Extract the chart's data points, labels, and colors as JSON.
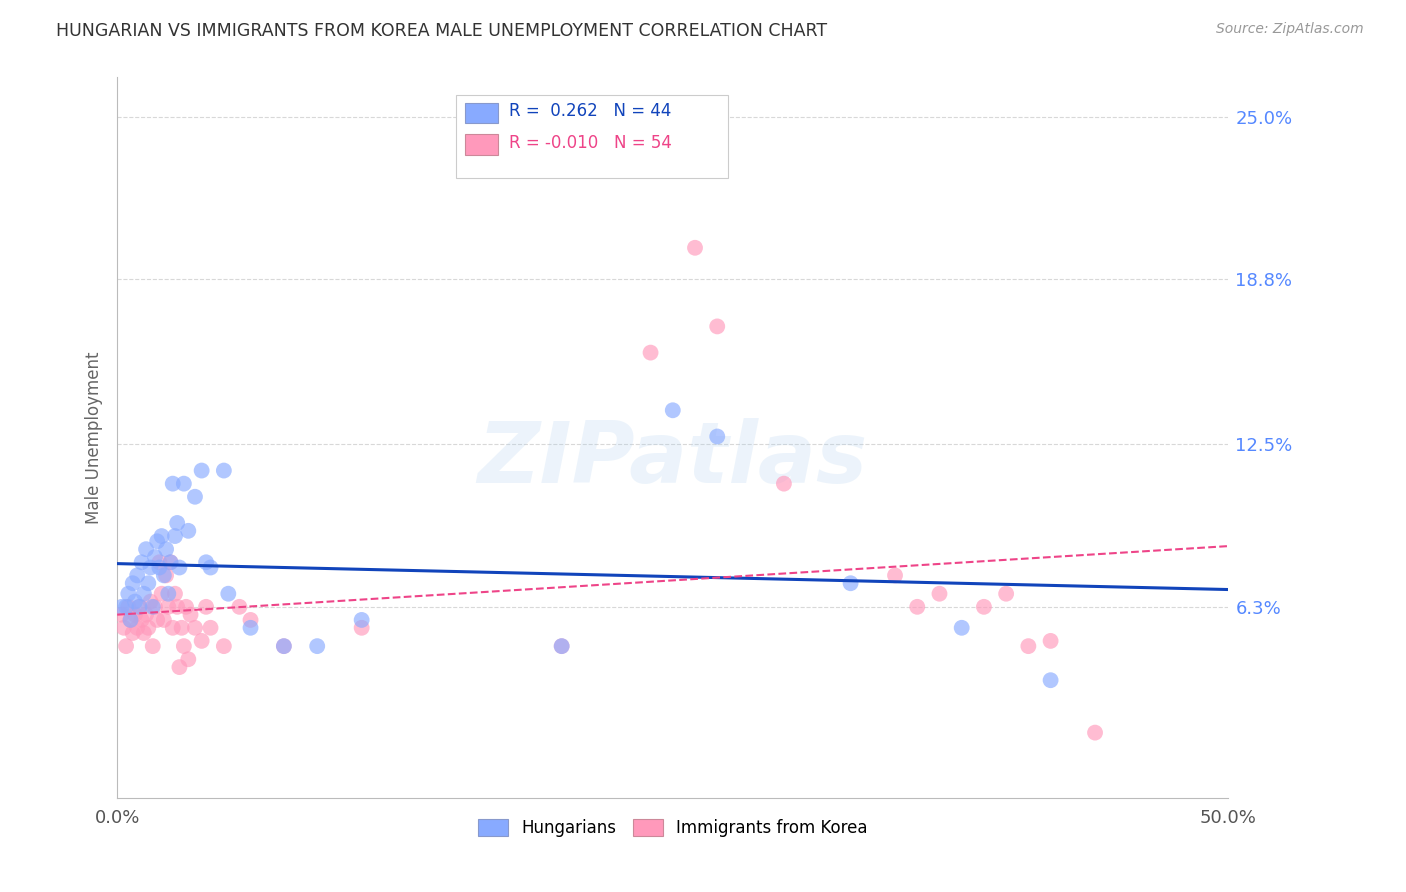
{
  "title": "HUNGARIAN VS IMMIGRANTS FROM KOREA MALE UNEMPLOYMENT CORRELATION CHART",
  "source": "Source: ZipAtlas.com",
  "ylabel": "Male Unemployment",
  "xlim": [
    0.0,
    0.5
  ],
  "ylim": [
    0.0,
    0.25
  ],
  "yticks": [
    0.063,
    0.125,
    0.188,
    0.25
  ],
  "ytick_labels": [
    "6.3%",
    "12.5%",
    "18.8%",
    "25.0%"
  ],
  "xticks": [
    0.0,
    0.5
  ],
  "xtick_labels": [
    "0.0%",
    "50.0%"
  ],
  "background_color": "#ffffff",
  "grid_color": "#d8d8d8",
  "blue_color": "#88aaff",
  "pink_color": "#ff99bb",
  "line_blue": "#1144bb",
  "line_pink": "#ee4488",
  "watermark": "ZIPatlas",
  "legend_blue_R": "0.262",
  "legend_blue_N": "44",
  "legend_pink_R": "-0.010",
  "legend_pink_N": "54",
  "blue_points": [
    [
      0.002,
      0.063
    ],
    [
      0.004,
      0.063
    ],
    [
      0.005,
      0.068
    ],
    [
      0.006,
      0.058
    ],
    [
      0.007,
      0.072
    ],
    [
      0.008,
      0.065
    ],
    [
      0.009,
      0.075
    ],
    [
      0.01,
      0.063
    ],
    [
      0.011,
      0.08
    ],
    [
      0.012,
      0.068
    ],
    [
      0.013,
      0.085
    ],
    [
      0.014,
      0.072
    ],
    [
      0.015,
      0.078
    ],
    [
      0.016,
      0.063
    ],
    [
      0.017,
      0.082
    ],
    [
      0.018,
      0.088
    ],
    [
      0.019,
      0.078
    ],
    [
      0.02,
      0.09
    ],
    [
      0.021,
      0.075
    ],
    [
      0.022,
      0.085
    ],
    [
      0.023,
      0.068
    ],
    [
      0.024,
      0.08
    ],
    [
      0.025,
      0.11
    ],
    [
      0.026,
      0.09
    ],
    [
      0.027,
      0.095
    ],
    [
      0.028,
      0.078
    ],
    [
      0.03,
      0.11
    ],
    [
      0.032,
      0.092
    ],
    [
      0.035,
      0.105
    ],
    [
      0.038,
      0.115
    ],
    [
      0.04,
      0.08
    ],
    [
      0.042,
      0.078
    ],
    [
      0.048,
      0.115
    ],
    [
      0.05,
      0.068
    ],
    [
      0.06,
      0.055
    ],
    [
      0.075,
      0.048
    ],
    [
      0.09,
      0.048
    ],
    [
      0.11,
      0.058
    ],
    [
      0.2,
      0.048
    ],
    [
      0.25,
      0.138
    ],
    [
      0.27,
      0.128
    ],
    [
      0.33,
      0.072
    ],
    [
      0.38,
      0.055
    ],
    [
      0.42,
      0.035
    ]
  ],
  "pink_points": [
    [
      0.002,
      0.06
    ],
    [
      0.003,
      0.055
    ],
    [
      0.004,
      0.048
    ],
    [
      0.005,
      0.063
    ],
    [
      0.006,
      0.058
    ],
    [
      0.007,
      0.053
    ],
    [
      0.008,
      0.06
    ],
    [
      0.009,
      0.055
    ],
    [
      0.01,
      0.063
    ],
    [
      0.011,
      0.058
    ],
    [
      0.012,
      0.053
    ],
    [
      0.013,
      0.06
    ],
    [
      0.014,
      0.055
    ],
    [
      0.015,
      0.065
    ],
    [
      0.016,
      0.048
    ],
    [
      0.017,
      0.063
    ],
    [
      0.018,
      0.058
    ],
    [
      0.019,
      0.08
    ],
    [
      0.02,
      0.068
    ],
    [
      0.021,
      0.058
    ],
    [
      0.022,
      0.075
    ],
    [
      0.023,
      0.063
    ],
    [
      0.024,
      0.08
    ],
    [
      0.025,
      0.055
    ],
    [
      0.026,
      0.068
    ],
    [
      0.027,
      0.063
    ],
    [
      0.028,
      0.04
    ],
    [
      0.029,
      0.055
    ],
    [
      0.03,
      0.048
    ],
    [
      0.031,
      0.063
    ],
    [
      0.032,
      0.043
    ],
    [
      0.033,
      0.06
    ],
    [
      0.035,
      0.055
    ],
    [
      0.038,
      0.05
    ],
    [
      0.04,
      0.063
    ],
    [
      0.042,
      0.055
    ],
    [
      0.048,
      0.048
    ],
    [
      0.055,
      0.063
    ],
    [
      0.06,
      0.058
    ],
    [
      0.075,
      0.048
    ],
    [
      0.11,
      0.055
    ],
    [
      0.2,
      0.048
    ],
    [
      0.24,
      0.16
    ],
    [
      0.26,
      0.2
    ],
    [
      0.27,
      0.17
    ],
    [
      0.3,
      0.11
    ],
    [
      0.35,
      0.075
    ],
    [
      0.36,
      0.063
    ],
    [
      0.37,
      0.068
    ],
    [
      0.39,
      0.063
    ],
    [
      0.4,
      0.068
    ],
    [
      0.41,
      0.048
    ],
    [
      0.42,
      0.05
    ],
    [
      0.44,
      0.015
    ]
  ]
}
